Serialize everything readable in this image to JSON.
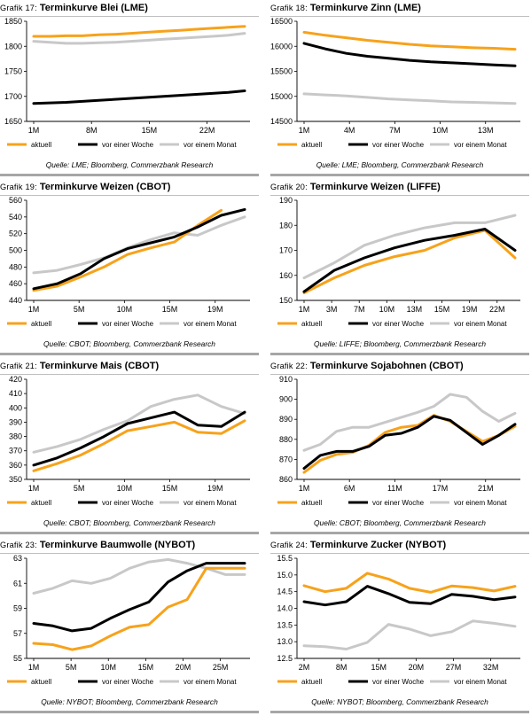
{
  "colors": {
    "aktuell": "#f7a21b",
    "vor_einer_woche": "#000000",
    "vor_einem_monat": "#c8c8c8"
  },
  "panels": [
    {
      "prefix": "Grafik 17:",
      "name": "Terminkurve Blei (LME)",
      "source": "Quelle: LME; Bloomberg, Commerzbank Research",
      "chart_data": {
        "type": "line",
        "x_ticks": [
          "1M",
          "8M",
          "15M",
          "22M"
        ],
        "y_ticks": [
          1650,
          1700,
          1750,
          1800,
          1850
        ],
        "ylim": [
          1650,
          1850
        ],
        "series": [
          {
            "name": "aktuell",
            "color": "#f7a21b",
            "values": [
              1820,
              1820,
              1821,
              1821,
              1823,
              1824,
              1826,
              1828,
              1830,
              1832,
              1834,
              1836,
              1838,
              1840
            ]
          },
          {
            "name": "vor einer Woche",
            "color": "#000000",
            "values": [
              1686,
              1687,
              1688,
              1690,
              1692,
              1694,
              1696,
              1698,
              1700,
              1702,
              1704,
              1706,
              1708,
              1711
            ]
          },
          {
            "name": "vor einem Monat",
            "color": "#c8c8c8",
            "values": [
              1810,
              1808,
              1806,
              1806,
              1807,
              1808,
              1810,
              1812,
              1814,
              1816,
              1818,
              1820,
              1822,
              1826
            ]
          }
        ]
      }
    },
    {
      "prefix": "Grafik 18:",
      "name": "Terminkurve Zinn (LME)",
      "source": "Quelle: LME; Bloomberg, Commerzbank Research",
      "chart_data": {
        "type": "line",
        "x_ticks": [
          "1M",
          "4M",
          "7M",
          "10M",
          "13M"
        ],
        "y_ticks": [
          14500,
          15000,
          15500,
          16000,
          16500
        ],
        "ylim": [
          14500,
          16500
        ],
        "series": [
          {
            "name": "aktuell",
            "color": "#f7a21b",
            "values": [
              16280,
              16220,
              16170,
              16120,
              16080,
              16040,
              16010,
              15990,
              15970,
              15960,
              15940
            ]
          },
          {
            "name": "vor einer Woche",
            "color": "#000000",
            "values": [
              16060,
              15950,
              15860,
              15800,
              15760,
              15720,
              15690,
              15670,
              15650,
              15630,
              15610
            ]
          },
          {
            "name": "vor einem Monat",
            "color": "#c8c8c8",
            "values": [
              15050,
              15030,
              15010,
              14980,
              14950,
              14930,
              14910,
              14890,
              14880,
              14870,
              14860
            ]
          }
        ]
      }
    },
    {
      "prefix": "Grafik 19:",
      "name": "Terminkurve Weizen (CBOT)",
      "source": "Quelle: CBOT; Bloomberg, Commerzbank Research",
      "chart_data": {
        "type": "line",
        "x_ticks": [
          "1M",
          "5M",
          "10M",
          "15M",
          "19M"
        ],
        "y_ticks": [
          440,
          460,
          480,
          500,
          520,
          540,
          560
        ],
        "ylim": [
          440,
          560
        ],
        "series": [
          {
            "name": "aktuell",
            "color": "#f7a21b",
            "values": [
              452,
              457,
              468,
              480,
              495,
              503,
              510,
              530,
              548
            ]
          },
          {
            "name": "vor einer Woche",
            "color": "#000000",
            "values": [
              454,
              460,
              472,
              490,
              502,
              509,
              516,
              528,
              542,
              549
            ]
          },
          {
            "name": "vor einem Monat",
            "color": "#c8c8c8",
            "values": [
              473,
              476,
              483,
              491,
              503,
              513,
              521,
              518,
              530,
              540
            ]
          }
        ]
      }
    },
    {
      "prefix": "Grafik 20:",
      "name": "Terminkurve Weizen (LIFFE)",
      "source": "Quelle: LIFFE; Bloomberg, Commerzbank Research",
      "chart_data": {
        "type": "line",
        "x_ticks": [
          "1M",
          "3M",
          "7M",
          "10M",
          "13M",
          "15M",
          "19M",
          "22M"
        ],
        "y_ticks": [
          150,
          160,
          170,
          180,
          190
        ],
        "ylim": [
          150,
          190
        ],
        "series": [
          {
            "name": "aktuell",
            "color": "#f7a21b",
            "values": [
              153,
              159,
              164,
              167.5,
              170,
              175,
              178,
              167
            ]
          },
          {
            "name": "vor einer Woche",
            "color": "#000000",
            "values": [
              153.5,
              162,
              167,
              171,
              174,
              176,
              178.5,
              170
            ]
          },
          {
            "name": "vor einem Monat",
            "color": "#c8c8c8",
            "values": [
              159,
              165,
              172,
              176,
              179,
              181,
              181,
              184
            ]
          }
        ]
      }
    },
    {
      "prefix": "Grafik 21:",
      "name": "Terminkurve Mais (CBOT)",
      "source": "Quelle: CBOT; Bloomberg, Commerzbank Research",
      "chart_data": {
        "type": "line",
        "x_ticks": [
          "1M",
          "5M",
          "10M",
          "15M",
          "19M"
        ],
        "y_ticks": [
          350,
          360,
          370,
          380,
          390,
          400,
          410,
          420
        ],
        "ylim": [
          350,
          420
        ],
        "series": [
          {
            "name": "aktuell",
            "color": "#f7a21b",
            "values": [
              356,
              361,
              367,
              375,
              384,
              387,
              390,
              383,
              382,
              391
            ]
          },
          {
            "name": "vor einer Woche",
            "color": "#000000",
            "values": [
              360,
              365,
              372,
              380,
              389,
              393,
              397,
              388,
              387,
              397
            ]
          },
          {
            "name": "vor einem Monat",
            "color": "#c8c8c8",
            "values": [
              369,
              373,
              378,
              385,
              391,
              401,
              406,
              409,
              401,
              396
            ]
          }
        ]
      }
    },
    {
      "prefix": "Grafik 22:",
      "name": "Terminkurve Sojabohnen (CBOT)",
      "source": "Quelle: CBOT; Bloomberg, Commerzbank Research",
      "chart_data": {
        "type": "line",
        "x_ticks": [
          "1M",
          "6M",
          "11M",
          "17M",
          "21M"
        ],
        "y_ticks": [
          860,
          870,
          880,
          890,
          900,
          910
        ],
        "ylim": [
          860,
          910
        ],
        "series": [
          {
            "name": "aktuell",
            "color": "#f7a21b",
            "values": [
              863.5,
              869.5,
              872.5,
              873.5,
              877,
              883.5,
              886,
              887,
              892,
              889,
              884,
              879,
              882,
              886.5
            ]
          },
          {
            "name": "vor einer Woche",
            "color": "#000000",
            "values": [
              865.5,
              872,
              874,
              874,
              876.5,
              882,
              883,
              886,
              891.5,
              889.5,
              883.5,
              877.5,
              882,
              887.5
            ]
          },
          {
            "name": "vor einem Monat",
            "color": "#c8c8c8",
            "values": [
              874.5,
              877.5,
              884,
              886,
              886,
              888.5,
              891,
              893.5,
              896.5,
              902.5,
              901,
              894,
              889,
              893
            ]
          }
        ]
      }
    },
    {
      "prefix": "Grafik 23:",
      "name": "Terminkurve Baumwolle (NYBOT)",
      "source": "Quelle: NYBOT; Bloomberg, Commerzbank Research",
      "chart_data": {
        "type": "line",
        "x_ticks": [
          "1M",
          "5M",
          "10M",
          "15M",
          "20M",
          "25M"
        ],
        "y_ticks": [
          55,
          57,
          59,
          61,
          63
        ],
        "ylim": [
          55,
          63
        ],
        "series": [
          {
            "name": "aktuell",
            "color": "#f7a21b",
            "values": [
              56.2,
              56.1,
              55.7,
              56.0,
              56.8,
              57.5,
              57.7,
              59.1,
              59.7,
              62.2,
              62.2,
              62.2
            ]
          },
          {
            "name": "vor einer Woche",
            "color": "#000000",
            "values": [
              57.8,
              57.6,
              57.2,
              57.4,
              58.2,
              58.9,
              59.5,
              61.1,
              62.0,
              62.6,
              62.6,
              62.6
            ]
          },
          {
            "name": "vor einem Monat",
            "color": "#c8c8c8",
            "values": [
              60.2,
              60.6,
              61.2,
              61.0,
              61.4,
              62.2,
              62.7,
              62.9,
              62.6,
              62.2,
              61.7,
              61.7
            ]
          }
        ]
      }
    },
    {
      "prefix": "Grafik 24:",
      "name": "Terminkurve Zucker (NYBOT)",
      "source": "Quelle: NYBOT; Bloomberg, Commerzbank Research",
      "chart_data": {
        "type": "line",
        "x_ticks": [
          "2M",
          "8M",
          "15M",
          "20M",
          "27M",
          "32M"
        ],
        "y_ticks": [
          12.5,
          13.0,
          13.5,
          14.0,
          14.5,
          15.0,
          15.5
        ],
        "ylim": [
          12.5,
          15.5
        ],
        "series": [
          {
            "name": "aktuell",
            "color": "#f7a21b",
            "values": [
              14.68,
              14.5,
              14.6,
              15.05,
              14.88,
              14.6,
              14.48,
              14.67,
              14.62,
              14.52,
              14.66
            ]
          },
          {
            "name": "vor einer Woche",
            "color": "#000000",
            "values": [
              14.2,
              14.1,
              14.2,
              14.66,
              14.44,
              14.18,
              14.14,
              14.42,
              14.36,
              14.26,
              14.34
            ]
          },
          {
            "name": "vor einem Monat",
            "color": "#c8c8c8",
            "values": [
              12.88,
              12.85,
              12.78,
              12.98,
              13.52,
              13.38,
              13.18,
              13.3,
              13.62,
              13.55,
              13.46
            ]
          }
        ]
      }
    }
  ]
}
